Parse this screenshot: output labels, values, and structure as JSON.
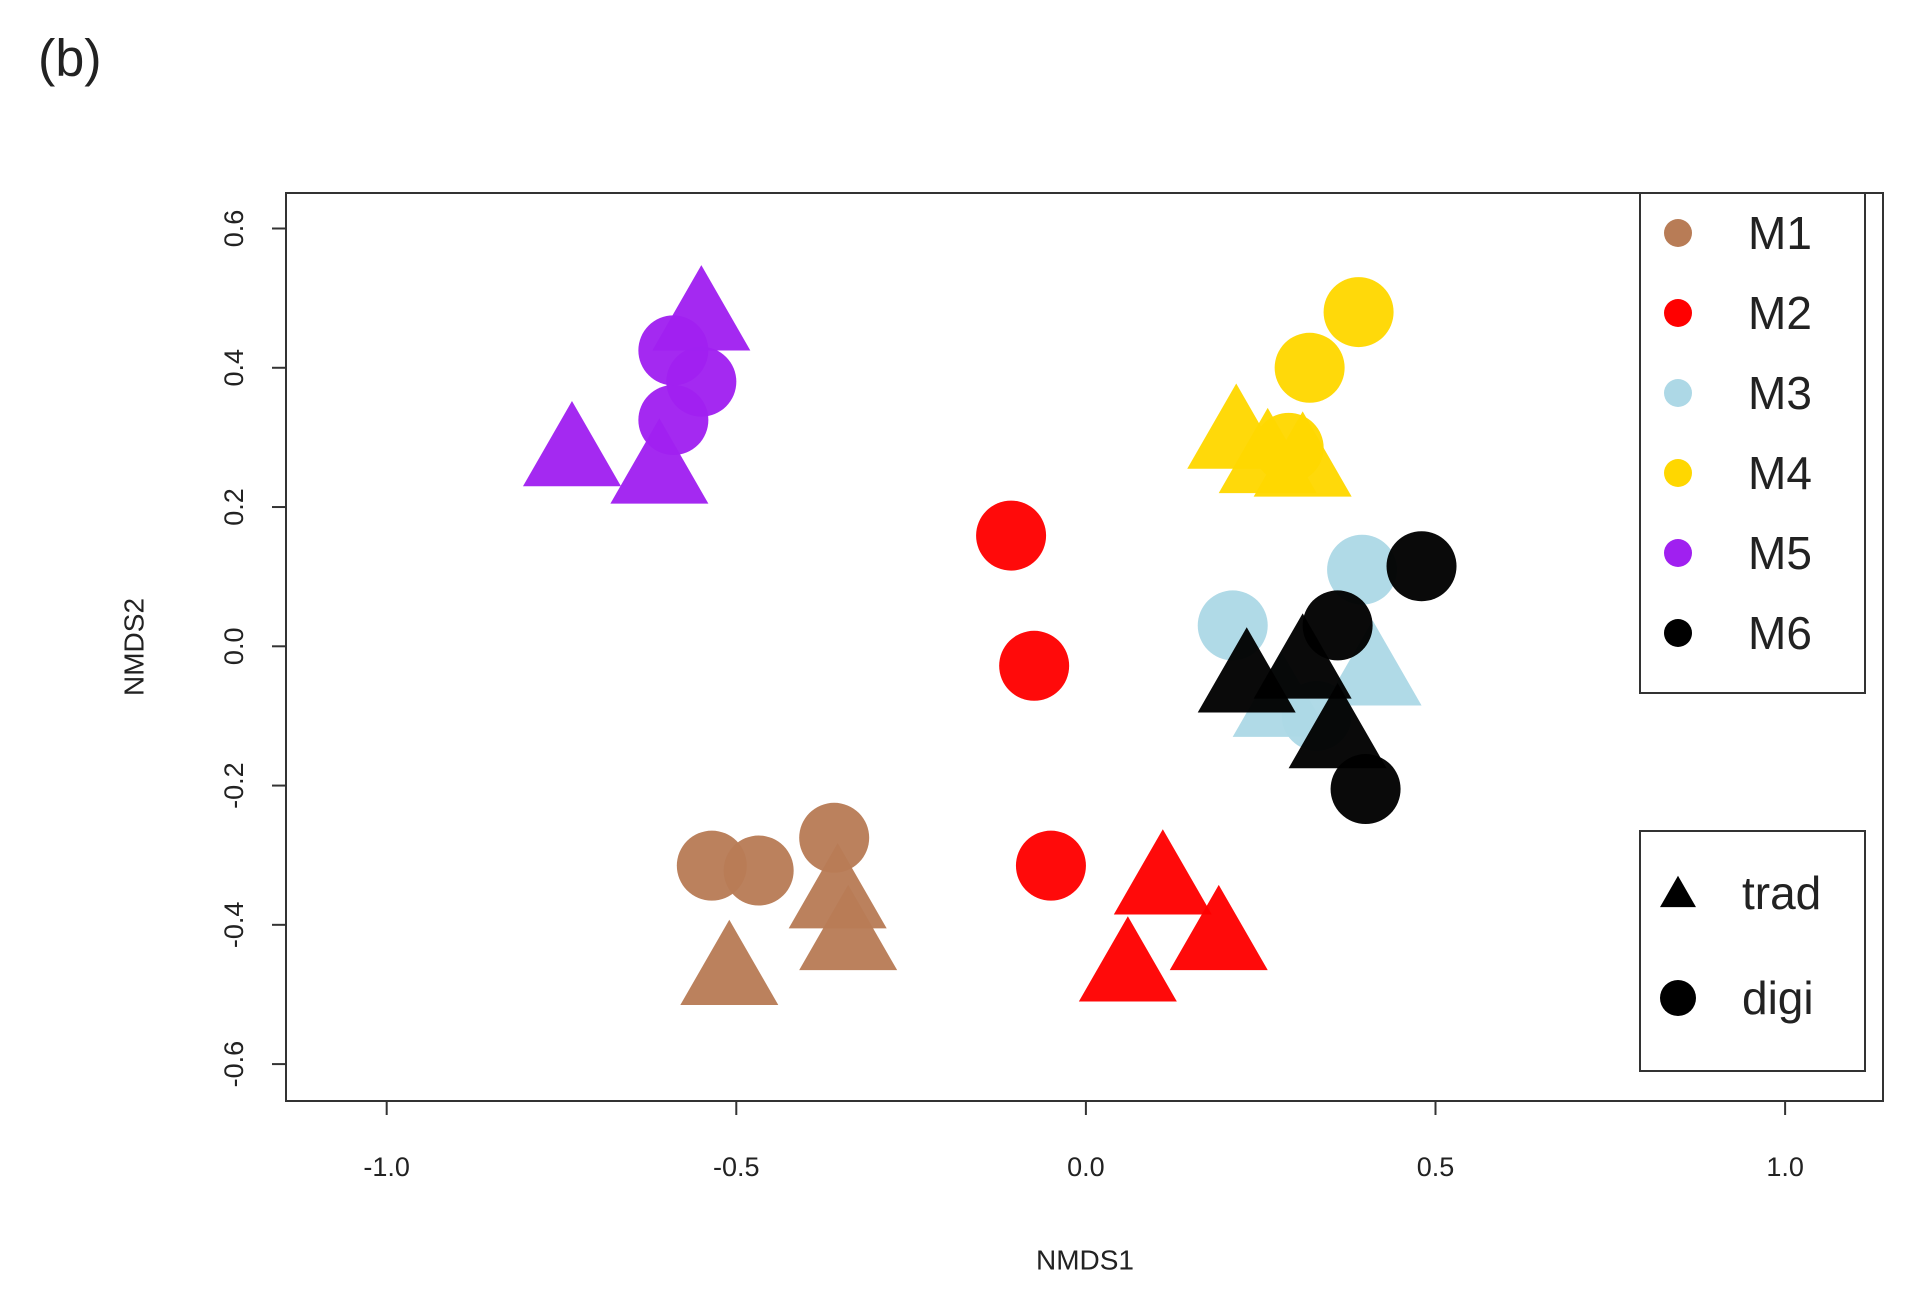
{
  "chart_data": {
    "type": "scatter",
    "panel_label": "(b)",
    "x_label": "NMDS1",
    "y_label": "NMDS2",
    "xlim": [
      -1.144,
      1.14
    ],
    "ylim": [
      -0.653,
      0.651
    ],
    "xticks": [
      {
        "value": -1,
        "label": "-1.0"
      },
      -0.5,
      {
        "value": 0,
        "label": "0.0"
      },
      0.5,
      {
        "value": 1,
        "label": "1.0"
      }
    ],
    "yticks": [
      -0.6,
      -0.4,
      -0.2,
      {
        "value": 0,
        "label": "0.0"
      },
      0.2,
      0.4,
      0.6
    ],
    "legend": "top-right",
    "shape_legend_position": "bottom-right",
    "shape_legend": [
      {
        "name": "trad",
        "marker": "triangle"
      },
      {
        "name": "digi",
        "marker": "circle"
      }
    ],
    "series": [
      {
        "name": "M1",
        "color": "#b87c56",
        "x": [
          -0.535,
          -0.468,
          -0.36,
          -0.51,
          -0.355,
          -0.34
        ],
        "y": [
          -0.315,
          -0.322,
          -0.275,
          -0.46,
          -0.35,
          -0.41
        ],
        "kind": [
          "digi",
          "digi",
          "digi",
          "trad",
          "trad",
          "trad"
        ]
      },
      {
        "name": "M2",
        "color": "#ff0000",
        "x": [
          -0.107,
          -0.074,
          -0.05,
          0.11,
          0.19,
          0.06
        ],
        "y": [
          0.159,
          -0.028,
          -0.315,
          -0.33,
          -0.41,
          -0.455
        ],
        "kind": [
          "digi",
          "digi",
          "digi",
          "trad",
          "trad",
          "trad"
        ]
      },
      {
        "name": "M3",
        "color": "#add8e6",
        "x": [
          0.21,
          0.395,
          0.33,
          0.41,
          0.28
        ],
        "y": [
          0.03,
          0.11,
          -0.1,
          -0.03,
          -0.075
        ],
        "kind": [
          "digi",
          "digi",
          "digi",
          "trad",
          "trad"
        ]
      },
      {
        "name": "M4",
        "color": "#ffd700",
        "x": [
          0.39,
          0.32,
          0.29,
          0.215,
          0.26,
          0.31
        ],
        "y": [
          0.48,
          0.4,
          0.285,
          0.31,
          0.275,
          0.27
        ],
        "kind": [
          "digi",
          "digi",
          "digi",
          "trad",
          "trad",
          "trad"
        ]
      },
      {
        "name": "M5",
        "color": "#a020f0",
        "x": [
          -0.59,
          -0.55,
          -0.59,
          -0.55,
          -0.735,
          -0.61
        ],
        "y": [
          0.425,
          0.38,
          0.325,
          0.48,
          0.285,
          0.26
        ],
        "kind": [
          "digi",
          "digi",
          "digi",
          "trad",
          "trad",
          "trad"
        ]
      },
      {
        "name": "M6",
        "color": "#000000",
        "x": [
          0.48,
          0.36,
          0.4,
          0.23,
          0.36,
          0.31
        ],
        "y": [
          0.115,
          0.03,
          -0.205,
          -0.04,
          -0.12,
          -0.02
        ],
        "kind": [
          "digi",
          "digi",
          "digi",
          "trad",
          "trad",
          "trad"
        ]
      }
    ]
  }
}
